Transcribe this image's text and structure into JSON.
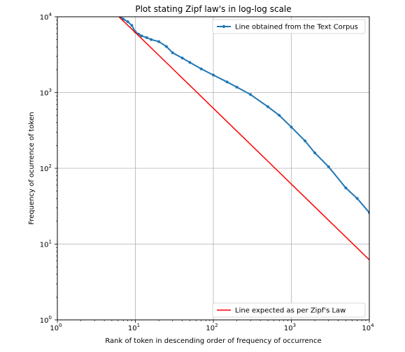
{
  "chart_data": {
    "type": "line",
    "title": "Plot stating Zipf law's in log-log scale",
    "xlabel": "Rank of token in descending order of frequency of occurrence",
    "ylabel": "Frequency of ocurrence of token",
    "xscale": "log",
    "yscale": "log",
    "xlim": [
      1,
      10000
    ],
    "ylim": [
      1,
      10000
    ],
    "grid": true,
    "x_ticks": [
      {
        "base": "10",
        "exp": "0",
        "value": 1
      },
      {
        "base": "10",
        "exp": "1",
        "value": 10
      },
      {
        "base": "10",
        "exp": "2",
        "value": 100
      },
      {
        "base": "10",
        "exp": "3",
        "value": 1000
      },
      {
        "base": "10",
        "exp": "4",
        "value": 10000
      }
    ],
    "y_ticks": [
      {
        "base": "10",
        "exp": "0",
        "value": 1
      },
      {
        "base": "10",
        "exp": "1",
        "value": 10
      },
      {
        "base": "10",
        "exp": "2",
        "value": 100
      },
      {
        "base": "10",
        "exp": "3",
        "value": 1000
      },
      {
        "base": "10",
        "exp": "4",
        "value": 10000
      }
    ],
    "series": [
      {
        "name": "Line obtained from the Text Corpus",
        "color": "#1f77b4",
        "marker": "dot",
        "legend_position": "top-right",
        "x": [
          6.5,
          7,
          8,
          9,
          10,
          11,
          12,
          14,
          16,
          20,
          25,
          30,
          40,
          50,
          70,
          100,
          150,
          200,
          300,
          500,
          700,
          1000,
          1500,
          2000,
          3000,
          5000,
          7000,
          10000
        ],
        "y": [
          9900,
          9300,
          8600,
          7700,
          6300,
          5900,
          5600,
          5300,
          5000,
          4700,
          4050,
          3350,
          2850,
          2500,
          2050,
          1700,
          1380,
          1180,
          940,
          650,
          500,
          350,
          230,
          160,
          105,
          55,
          40,
          26
        ]
      },
      {
        "name": "Line expected as per Zipf's Law",
        "color": "#ff0000",
        "marker": "none",
        "legend_position": "bottom-right",
        "x": [
          6.2,
          10,
          100,
          1000,
          10000
        ],
        "y": [
          9900,
          6200,
          620,
          62,
          6.2
        ]
      }
    ]
  }
}
